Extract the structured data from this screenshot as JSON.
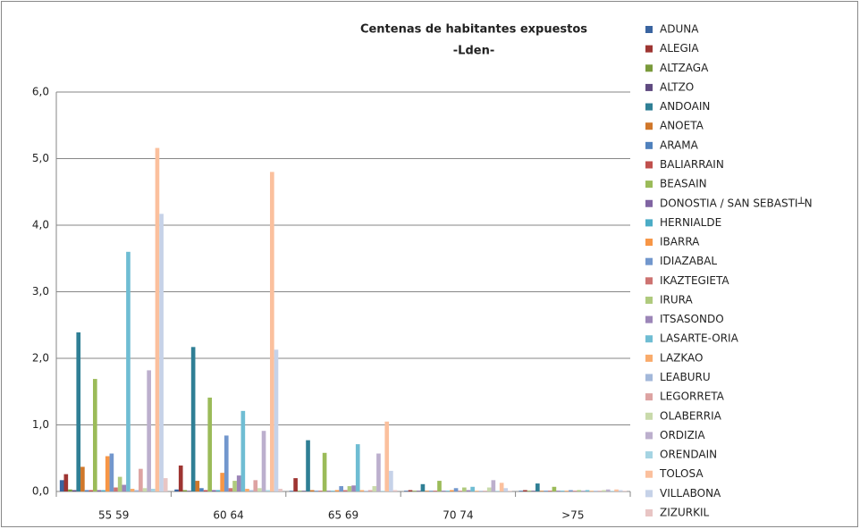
{
  "chart_data": {
    "type": "bar",
    "title": "Centenas de habitantes expuestos",
    "subtitle": "-Lden-",
    "categories": [
      "55 59",
      "60 64",
      "65 69",
      "70 74",
      ">75"
    ],
    "ylim": [
      0,
      6
    ],
    "yticks": [
      {
        "value": 0,
        "label": "0,0"
      },
      {
        "value": 1,
        "label": "1,0"
      },
      {
        "value": 2,
        "label": "2,0"
      },
      {
        "value": 3,
        "label": "3,0"
      },
      {
        "value": 4,
        "label": "4,0"
      },
      {
        "value": 5,
        "label": "5,0"
      },
      {
        "value": 6,
        "label": "6,0"
      }
    ],
    "grid": true,
    "legend": "right",
    "series": [
      {
        "name": "ADUNA",
        "color": "#3A64A0",
        "values": [
          0.17,
          0.03,
          0.01,
          0.01,
          0.01
        ]
      },
      {
        "name": "ALEGIA",
        "color": "#9E3532",
        "values": [
          0.26,
          0.39,
          0.2,
          0.02,
          0.02
        ]
      },
      {
        "name": "ALTZAGA",
        "color": "#7A9A3B",
        "values": [
          0.03,
          0.02,
          0.01,
          0.01,
          0.01
        ]
      },
      {
        "name": "ALTZO",
        "color": "#5F4A80",
        "values": [
          0.02,
          0.01,
          0.01,
          0.01,
          0.01
        ]
      },
      {
        "name": "ANDOAIN",
        "color": "#2F7F95",
        "values": [
          2.39,
          2.17,
          0.77,
          0.11,
          0.12
        ]
      },
      {
        "name": "ANOETA",
        "color": "#D0772A",
        "values": [
          0.37,
          0.16,
          0.02,
          0.01,
          0.01
        ]
      },
      {
        "name": "ARAMA",
        "color": "#4F81BD",
        "values": [
          0.02,
          0.05,
          0.01,
          0.01,
          0.01
        ]
      },
      {
        "name": "BALIARRAIN",
        "color": "#C0504D",
        "values": [
          0.02,
          0.02,
          0.01,
          0.01,
          0.01
        ]
      },
      {
        "name": "BEASAIN",
        "color": "#9BBB59",
        "values": [
          1.69,
          1.41,
          0.58,
          0.16,
          0.07
        ]
      },
      {
        "name": "DONOSTIA / SAN SEBASTI┴N",
        "color": "#8064A2",
        "values": [
          0.02,
          0.02,
          0.01,
          0.01,
          0.01
        ]
      },
      {
        "name": "HERNIALDE",
        "color": "#4BACC6",
        "values": [
          0.02,
          0.02,
          0.01,
          0.01,
          0.01
        ]
      },
      {
        "name": "IBARRA",
        "color": "#F79646",
        "values": [
          0.53,
          0.28,
          0.02,
          0.02,
          0.01
        ]
      },
      {
        "name": "IDIAZABAL",
        "color": "#7297CD",
        "values": [
          0.57,
          0.84,
          0.08,
          0.05,
          0.02
        ]
      },
      {
        "name": "IKAZTEGIETA",
        "color": "#CD7371",
        "values": [
          0.06,
          0.05,
          0.02,
          0.01,
          0.01
        ]
      },
      {
        "name": "IRURA",
        "color": "#AFCA7D",
        "values": [
          0.22,
          0.16,
          0.08,
          0.06,
          0.02
        ]
      },
      {
        "name": "ITSASONDO",
        "color": "#9C86B8",
        "values": [
          0.1,
          0.24,
          0.09,
          0.02,
          0.01
        ]
      },
      {
        "name": "LASARTE-ORIA",
        "color": "#6FBDD3",
        "values": [
          3.6,
          1.21,
          0.71,
          0.07,
          0.02
        ]
      },
      {
        "name": "LAZKAO",
        "color": "#F9AB6B",
        "values": [
          0.04,
          0.04,
          0.02,
          0.01,
          0.01
        ]
      },
      {
        "name": "LEABURU",
        "color": "#A3B8DA",
        "values": [
          0.02,
          0.02,
          0.01,
          0.01,
          0.01
        ]
      },
      {
        "name": "LEGORRETA",
        "color": "#DDA3A2",
        "values": [
          0.34,
          0.17,
          0.02,
          0.01,
          0.01
        ]
      },
      {
        "name": "OLABERRIA",
        "color": "#C9DAAB",
        "values": [
          0.05,
          0.05,
          0.08,
          0.06,
          0.02
        ]
      },
      {
        "name": "ORDIZIA",
        "color": "#BCAFCD",
        "values": [
          1.82,
          0.91,
          0.57,
          0.17,
          0.03
        ]
      },
      {
        "name": "ORENDAIN",
        "color": "#A5D4E3",
        "values": [
          0.04,
          0.02,
          0.01,
          0.01,
          0.01
        ]
      },
      {
        "name": "TOLOSA",
        "color": "#FBC09D",
        "values": [
          5.16,
          4.8,
          1.05,
          0.13,
          0.03
        ]
      },
      {
        "name": "VILLABONA",
        "color": "#C6D2E8",
        "values": [
          4.17,
          2.13,
          0.31,
          0.05,
          0.02
        ]
      },
      {
        "name": "ZIZURKIL",
        "color": "#E8C5C4",
        "values": [
          0.2,
          0.04,
          0.02,
          0.01,
          0.01
        ]
      }
    ]
  }
}
